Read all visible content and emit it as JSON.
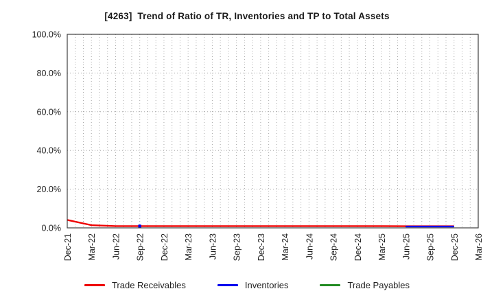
{
  "title": "[4263]  Trend of Ratio of TR, Inventories and TP to Total Assets",
  "colors": {
    "background": "#ffffff",
    "axis_border": "#404040",
    "gridline": "#a8a8a8",
    "tick_label": "#222222",
    "title_text": "#1a1a1a"
  },
  "chart_data": {
    "type": "line",
    "title": "[4263]  Trend of Ratio of TR, Inventories and TP to Total Assets",
    "xlabel": "",
    "ylabel": "",
    "ylim": [
      0,
      100
    ],
    "y_tick_step_pct": 20,
    "y_tick_labels": [
      "0.0%",
      "20.0%",
      "40.0%",
      "60.0%",
      "80.0%",
      "100.0%"
    ],
    "x_tick_labels": [
      "Dec-21",
      "Mar-22",
      "Jun-22",
      "Sep-22",
      "Dec-22",
      "Mar-23",
      "Jun-23",
      "Sep-23",
      "Dec-23",
      "Mar-24",
      "Jun-24",
      "Sep-24",
      "Dec-24",
      "Mar-25",
      "Jun-25",
      "Sep-25",
      "Dec-25",
      "Mar-26"
    ],
    "x_tick_label_rotation_deg": -90,
    "grid": {
      "style": "dotted",
      "vertical": "monthly",
      "months_per_labeled_tick": 3,
      "horizontal_step_pct": 20
    },
    "legend_position": "bottom-center",
    "series": [
      {
        "name": "Trade Receivables",
        "color": "#ee0000",
        "values_pct": [
          4.1,
          1.4,
          0.9,
          0.9,
          0.9,
          0.9,
          0.9,
          0.9,
          0.9,
          0.9,
          0.9,
          0.9,
          0.9,
          0.9,
          0.85,
          0.85,
          0.85,
          null
        ]
      },
      {
        "name": "Inventories",
        "color": "#0000ee",
        "values_pct": [
          null,
          null,
          null,
          0.9,
          null,
          null,
          null,
          null,
          null,
          null,
          null,
          null,
          null,
          null,
          0.7,
          0.7,
          0.7,
          null
        ]
      },
      {
        "name": "Trade Payables",
        "color": "#228b22",
        "values_pct": [
          null,
          null,
          null,
          null,
          null,
          null,
          null,
          null,
          null,
          null,
          null,
          null,
          null,
          null,
          null,
          null,
          null,
          null
        ]
      }
    ]
  }
}
